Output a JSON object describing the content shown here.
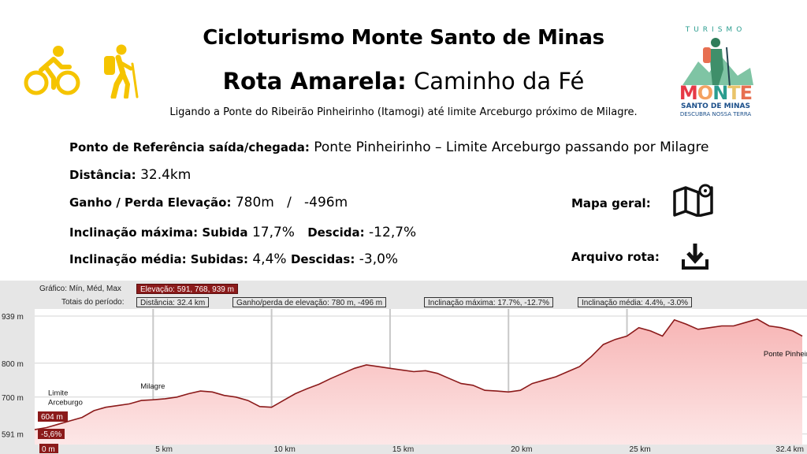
{
  "header": {
    "title": "Cicloturismo Monte Santo de Minas",
    "route_bold": "Rota Amarela:",
    "route_name": "Caminho da Fé",
    "subtitle": "Ligando a Ponte do Ribeirão Pinheirinho (Itamogi) até limite Arceburgo próximo de Milagre."
  },
  "icons": {
    "bike": "bicycle-icon",
    "hiker": "hiker-icon",
    "map": "map-pin-icon",
    "download": "download-icon",
    "accent": "#f5c400"
  },
  "logo": {
    "top": "TURISMO",
    "main": "MONTE",
    "line2": "SANTO DE MINAS",
    "tagline": "DESCUBRA NOSSA TERRA"
  },
  "info": {
    "ref_label": "Ponto de Referência saída/chegada:",
    "ref_value": "Ponte Pinheirinho – Limite Arceburgo passando por Milagre",
    "dist_label": "Distância:",
    "dist_value": "32.4km",
    "elev_label": "Ganho / Perda Elevação:",
    "elev_value": "780m   /   -496m",
    "maxinc_label": "Inclinação máxima: Subida",
    "maxinc_up": "17,7%",
    "maxinc_down_label": "Descida:",
    "maxinc_down": "-12,7%",
    "avginc_label": "Inclinação média: Subidas:",
    "avginc_up": "4,4%",
    "avginc_down_label": "Descidas:",
    "avginc_down": "-3,0%"
  },
  "side": {
    "map_label": "Mapa geral:",
    "route_label": "Arquivo rota:"
  },
  "chart_header": {
    "row1_label": "Gráfico: Mín, Méd, Max",
    "row1_value": "Elevação: 591, 768, 939 m",
    "row2_label": "Totais do período:",
    "dist": "Distância: 32.4 km",
    "gain": "Ganho/perda de elevação: 780 m, -496 m",
    "maxinc": "Inclinação máxima: 17.7%, -12.7%",
    "avginc": "Inclinação média: 4.4%, -3.0%"
  },
  "chart_data": {
    "type": "area",
    "xlabel": "",
    "ylabel": "",
    "x_unit": "km",
    "xlim": [
      0,
      32.4
    ],
    "ylim": [
      560,
      960
    ],
    "y_ticks": [
      {
        "value": 591,
        "label": "591 m"
      },
      {
        "value": 700,
        "label": "700 m"
      },
      {
        "value": 800,
        "label": "800 m"
      },
      {
        "value": 939,
        "label": "939 m"
      }
    ],
    "x_ticks": [
      {
        "value": 0,
        "label": "0 m"
      },
      {
        "value": 5,
        "label": "5 km"
      },
      {
        "value": 10,
        "label": "10 km"
      },
      {
        "value": 15,
        "label": "15 km"
      },
      {
        "value": 20,
        "label": "20 km"
      },
      {
        "value": 25,
        "label": "25 km"
      },
      {
        "value": 32.4,
        "label": "32.4 km"
      }
    ],
    "series": [
      {
        "x": [
          0,
          0.5,
          1,
          1.5,
          2,
          2.5,
          3,
          3.5,
          4,
          4.5,
          5,
          5.5,
          6,
          6.5,
          7,
          7.5,
          8,
          8.5,
          9,
          9.5,
          10,
          10.5,
          11,
          11.5,
          12,
          12.5,
          13,
          13.5,
          14,
          14.5,
          15,
          15.5,
          16,
          16.5,
          17,
          17.5,
          18,
          18.5,
          19,
          19.5,
          20,
          20.5,
          21,
          21.5,
          22,
          22.5,
          23,
          23.5,
          24,
          24.5,
          25,
          25.5,
          26,
          26.5,
          27,
          27.5,
          28,
          28.5,
          29,
          29.5,
          30,
          30.5,
          31,
          31.5,
          32,
          32.4
        ],
        "y": [
          604,
          610,
          620,
          630,
          640,
          660,
          670,
          675,
          680,
          690,
          692,
          695,
          700,
          710,
          718,
          715,
          705,
          700,
          690,
          672,
          670,
          690,
          710,
          725,
          738,
          755,
          770,
          785,
          795,
          790,
          785,
          780,
          775,
          778,
          770,
          755,
          740,
          735,
          720,
          718,
          715,
          720,
          740,
          750,
          760,
          775,
          790,
          820,
          855,
          870,
          880,
          905,
          895,
          880,
          928,
          915,
          900,
          905,
          910,
          910,
          920,
          930,
          910,
          905,
          895,
          880
        ]
      }
    ],
    "fill_color": "#f7b5b5",
    "line_color": "#8b1a1a",
    "annotations": [
      {
        "x": 0.3,
        "y": 705,
        "text": "Limite\nArceburgo"
      },
      {
        "x": 4.2,
        "y": 725,
        "text": "Milagre"
      },
      {
        "x": 30.5,
        "y": 820,
        "text": "Ponte Pinheirinho"
      }
    ],
    "start_readout": {
      "elevation": "604 m",
      "grade": "-5,6%"
    }
  }
}
